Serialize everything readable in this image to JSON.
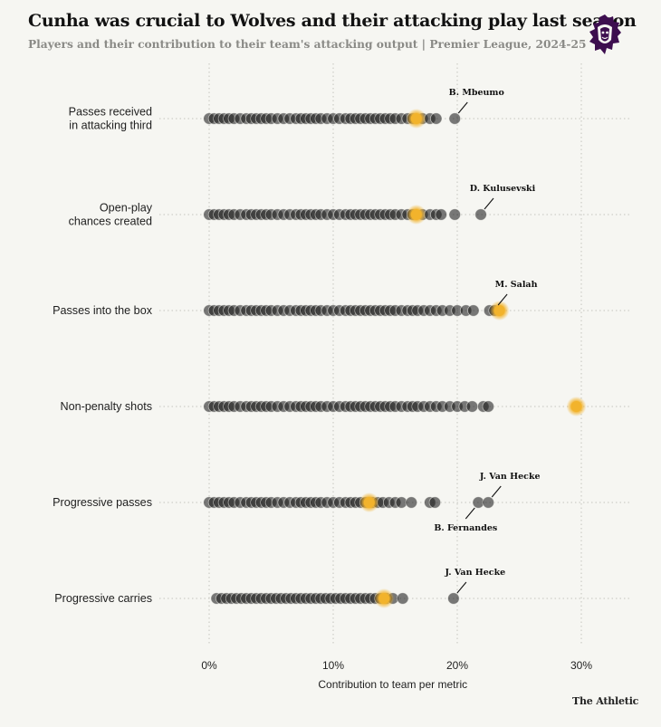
{
  "title": "Cunha was crucial to Wolves and their attacking play last season",
  "subtitle": "Players and their contribution to their team's attacking output | Premier League, 2024-25",
  "credit": "The Athletic",
  "logo_icon": "premier-league-lion-logo",
  "colors": {
    "background": "#f6f6f2",
    "dots": "#1c1c1c",
    "highlight": "#f2b32c",
    "grid": "#c4c4be",
    "logo": "#3d0e4f"
  },
  "chart_data": {
    "type": "scatter",
    "subtype": "strip plot",
    "xlabel": "Contribution to team per metric",
    "x_ticks": [
      "0%",
      "10%",
      "20%",
      "30%"
    ],
    "x_tick_values": [
      0,
      10,
      20,
      30
    ],
    "xlim": [
      0,
      34
    ],
    "grid": "dotted vertical at ticks and horizontal per metric",
    "highlight_player": "Cunha",
    "metrics": [
      {
        "label_lines": [
          "Passes received",
          "in attacking third"
        ],
        "values": [
          0,
          0.4,
          0.8,
          1.2,
          1.6,
          2,
          2.5,
          3,
          3.4,
          3.8,
          4.2,
          4.6,
          5,
          5.5,
          6,
          6.5,
          7,
          7.4,
          7.8,
          8.2,
          8.6,
          9,
          9.5,
          10,
          10.5,
          11,
          11.4,
          11.8,
          12.2,
          12.6,
          13,
          13.4,
          13.8,
          14.2,
          14.6,
          15,
          15.5,
          16,
          16.4,
          17.2,
          17.8,
          18.3,
          19.8
        ],
        "highlight_value": 16.7,
        "annotations": [
          {
            "text": "B. Mbeumo",
            "value": 19.8
          }
        ]
      },
      {
        "label_lines": [
          "Open-play",
          "chances created"
        ],
        "values": [
          0,
          0.4,
          0.8,
          1.2,
          1.6,
          2,
          2.5,
          3,
          3.4,
          3.8,
          4.2,
          4.6,
          5,
          5.5,
          6,
          6.5,
          7,
          7.4,
          7.8,
          8.2,
          8.6,
          9,
          9.5,
          10,
          10.5,
          11,
          11.4,
          11.8,
          12.2,
          12.6,
          13,
          13.4,
          13.8,
          14.2,
          14.6,
          15,
          15.5,
          16,
          16.4,
          17.2,
          17.8,
          18.3,
          18.7,
          19.8,
          21.9
        ],
        "highlight_value": 16.7,
        "annotations": [
          {
            "text": "D. Kulusevski",
            "value": 21.9
          }
        ]
      },
      {
        "label_lines": [
          "Passes into the box"
        ],
        "values": [
          0,
          0.4,
          0.8,
          1.2,
          1.6,
          2,
          2.5,
          3,
          3.4,
          3.8,
          4.2,
          4.6,
          5,
          5.5,
          6,
          6.5,
          7,
          7.4,
          7.8,
          8.2,
          8.6,
          9,
          9.5,
          10,
          10.5,
          11,
          11.4,
          11.8,
          12.2,
          12.6,
          13,
          13.4,
          13.8,
          14.2,
          14.6,
          15,
          15.5,
          16,
          16.4,
          16.8,
          17.3,
          17.8,
          18.3,
          18.8,
          19.4,
          20,
          20.7,
          21.3,
          22.6,
          23.0
        ],
        "highlight_value": 23.4,
        "annotations": [
          {
            "text": "M. Salah",
            "value": 23.0
          }
        ]
      },
      {
        "label_lines": [
          "Non-penalty shots"
        ],
        "values": [
          0,
          0.4,
          0.8,
          1.2,
          1.6,
          2,
          2.5,
          3,
          3.4,
          3.8,
          4.2,
          4.6,
          5,
          5.5,
          6,
          6.5,
          7,
          7.4,
          7.8,
          8.2,
          8.6,
          9,
          9.5,
          10,
          10.5,
          11,
          11.4,
          11.8,
          12.2,
          12.6,
          13,
          13.4,
          13.8,
          14.2,
          14.6,
          15,
          15.5,
          16,
          16.4,
          16.8,
          17.3,
          17.8,
          18.3,
          18.8,
          19.4,
          20,
          20.6,
          21.2,
          22.1,
          22.5
        ],
        "highlight_value": 29.6,
        "annotations": []
      },
      {
        "label_lines": [
          "Progressive passes"
        ],
        "values": [
          0,
          0.4,
          0.8,
          1.2,
          1.6,
          2,
          2.5,
          3,
          3.4,
          3.8,
          4.2,
          4.6,
          5,
          5.5,
          6,
          6.5,
          7,
          7.4,
          7.8,
          8.2,
          8.6,
          9,
          9.5,
          10,
          10.5,
          11,
          11.4,
          11.8,
          12.2,
          12.6,
          13.2,
          13.6,
          14,
          14.5,
          15,
          15.5,
          16.3,
          17.8,
          18.2,
          21.7,
          22.5
        ],
        "highlight_value": 12.9,
        "annotations": [
          {
            "text": "J. Van Hecke",
            "value": 22.5,
            "position": "above"
          },
          {
            "text": "B. Fernandes",
            "value": 21.7,
            "position": "below"
          }
        ]
      },
      {
        "label_lines": [
          "Progressive carries"
        ],
        "values": [
          0.6,
          1,
          1.4,
          1.8,
          2.2,
          2.6,
          3,
          3.4,
          3.8,
          4.2,
          4.6,
          5,
          5.4,
          5.8,
          6.2,
          6.6,
          7,
          7.4,
          7.8,
          8.2,
          8.6,
          9,
          9.4,
          9.8,
          10.2,
          10.6,
          11,
          11.4,
          11.8,
          12.2,
          12.6,
          13,
          13.4,
          13.8,
          14.3,
          14.8,
          15.6,
          19.7
        ],
        "highlight_value": 14.1,
        "annotations": [
          {
            "text": "J. Van Hecke",
            "value": 19.7
          }
        ]
      }
    ]
  }
}
